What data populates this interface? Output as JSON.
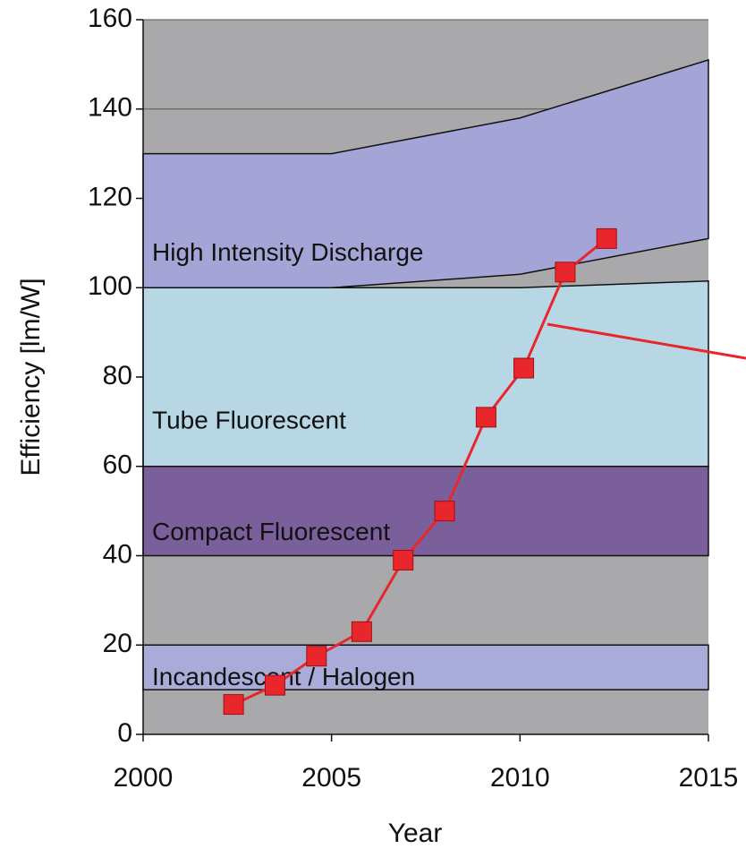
{
  "chart_data": {
    "type": "line",
    "xlabel": "Year",
    "ylabel": "Efficiency [lm/W]",
    "xlim": [
      2000,
      2015
    ],
    "xticks": [
      2000,
      2005,
      2010,
      2015
    ],
    "ylim": [
      0,
      160
    ],
    "yticks": [
      0,
      20,
      40,
      60,
      80,
      100,
      120,
      140,
      160
    ],
    "grid": true,
    "background": "#a9a9ab",
    "band_x": [
      2000,
      2005,
      2010,
      2015
    ],
    "bands": [
      {
        "name": "Incandescent / Halogen",
        "color": "#a9acd9",
        "lower": [
          10,
          10,
          10,
          10
        ],
        "upper": [
          20,
          20,
          20,
          20
        ]
      },
      {
        "name": "Compact Fluorescent",
        "color": "#7b5f9b",
        "lower": [
          40,
          40,
          40,
          40
        ],
        "upper": [
          60,
          60,
          60,
          60
        ]
      },
      {
        "name": "Tube Fluorescent",
        "color": "#b8d7e5",
        "lower": [
          60,
          60,
          60,
          60
        ],
        "upper": [
          100,
          100,
          100,
          101.5
        ]
      },
      {
        "name": "High Intensity Discharge",
        "color": "#a4a5d6",
        "lower": [
          100,
          100,
          103,
          111
        ],
        "upper": [
          130,
          130,
          138,
          151
        ]
      }
    ],
    "series": [
      {
        "color": "#e8262b",
        "x": [
          2002.4,
          2003.5,
          2004.6,
          2005.8,
          2006.9,
          2008.0,
          2009.1,
          2010.1,
          2011.2,
          2012.3
        ],
        "values": [
          6.7,
          11,
          17.5,
          23,
          39,
          50,
          71,
          82,
          103.5,
          111
        ]
      }
    ]
  }
}
